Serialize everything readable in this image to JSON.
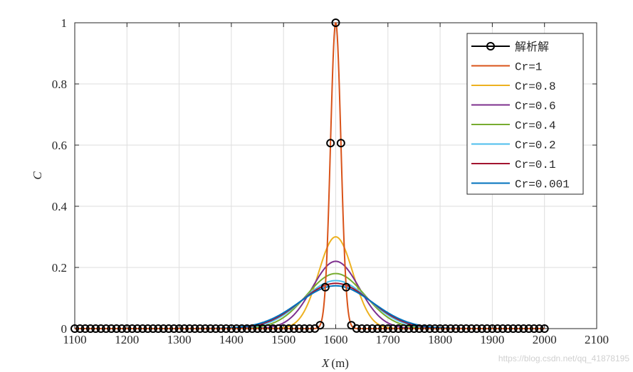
{
  "chart_data": {
    "type": "line",
    "title": "",
    "xlabel": "X",
    "xlabel_unit": "(m)",
    "ylabel": "C",
    "xlim": [
      1100,
      2100
    ],
    "ylim": [
      0,
      1
    ],
    "x_ticks": [
      1100,
      1200,
      1300,
      1400,
      1500,
      1600,
      1700,
      1800,
      1900,
      2000,
      2100
    ],
    "y_ticks": [
      0,
      0.2,
      0.4,
      0.6,
      0.8,
      1
    ],
    "y_tick_labels": [
      "0",
      "0.2",
      "0.4",
      "0.6",
      "0.8",
      "1"
    ],
    "grid": true,
    "legend_position": "top-right",
    "analytical": {
      "name": "解析解",
      "color": "#000000",
      "marker": "circle",
      "x_range": [
        1100,
        2000
      ],
      "step": 10,
      "peak_x": 1600,
      "peak_value": 1,
      "shape": "gaussian",
      "sigma": 10
    },
    "series": [
      {
        "name": "Cr=1",
        "color": "#d95319",
        "peak_x": 1600,
        "peak_value": 1.0,
        "sigma": 10
      },
      {
        "name": "Cr=0.8",
        "color": "#edb120",
        "peak_x": 1600,
        "peak_value": 0.3,
        "sigma": 33
      },
      {
        "name": "Cr=0.6",
        "color": "#7e2f8e",
        "peak_x": 1600,
        "peak_value": 0.22,
        "sigma": 45
      },
      {
        "name": "Cr=0.4",
        "color": "#77ac30",
        "peak_x": 1600,
        "peak_value": 0.18,
        "sigma": 56
      },
      {
        "name": "Cr=0.2",
        "color": "#4dbeee",
        "peak_x": 1600,
        "peak_value": 0.157,
        "sigma": 63
      },
      {
        "name": "Cr=0.1",
        "color": "#a2142f",
        "peak_x": 1600,
        "peak_value": 0.148,
        "sigma": 67
      },
      {
        "name": "Cr=0.001",
        "color": "#0072bd",
        "peak_x": 1600,
        "peak_value": 0.14,
        "sigma": 71
      }
    ]
  },
  "watermark": "https://blog.csdn.net/qq_41878195"
}
